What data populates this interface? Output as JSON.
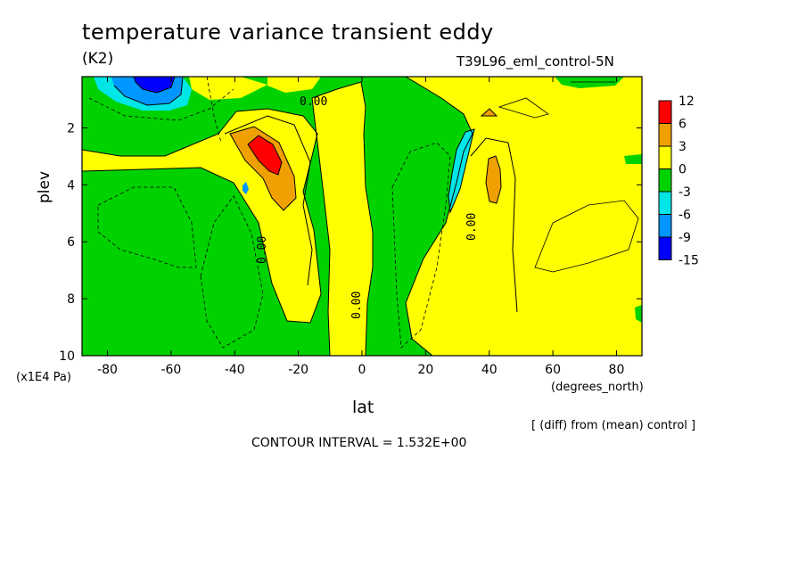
{
  "chart_data": {
    "type": "heatmap",
    "title": "temperature variance transient eddy",
    "units": "(K2)",
    "run_id": "T39L96_eml_control-5N",
    "xlabel": "lat",
    "x_units": "(degrees_north)",
    "ylabel": "plev",
    "y_units": "(x1E4 Pa)",
    "x_ticks": [
      "-80",
      "-60",
      "-40",
      "-20",
      "0",
      "20",
      "40",
      "60",
      "80"
    ],
    "y_ticks": [
      "2",
      "4",
      "6",
      "8",
      "10"
    ],
    "xlim": [
      -88,
      88
    ],
    "ylim": [
      10,
      0.2
    ],
    "colorbar": {
      "labels": [
        "12",
        "6",
        "3",
        "0",
        "-3",
        "-6",
        "-9",
        "-15"
      ],
      "colors": [
        "#ff0000",
        "#f0a000",
        "#ffff00",
        "#00d200",
        "#00e6e6",
        "#0096ff",
        "#0000ff"
      ]
    },
    "contour_labels": [
      "0.00",
      "0.00",
      "0.00",
      "0.00"
    ],
    "note": "[ (diff) from (mean) control ]",
    "contour_interval": "CONTOUR INTERVAL = 1.532E+00"
  }
}
